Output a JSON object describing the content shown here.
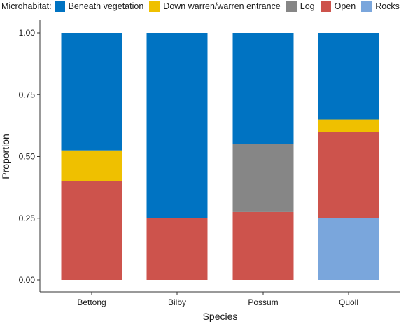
{
  "chart_data": {
    "type": "bar",
    "stacked": true,
    "categories": [
      "Bettong",
      "Bilby",
      "Possum",
      "Quoll"
    ],
    "series": [
      {
        "name": "Rocks",
        "color": "#7aa6dc",
        "values": [
          0,
          0,
          0,
          0.25
        ]
      },
      {
        "name": "Open",
        "color": "#cd534c",
        "values": [
          0.4,
          0.25,
          0.275,
          0.35
        ]
      },
      {
        "name": "Log",
        "color": "#868686",
        "values": [
          0,
          0,
          0.275,
          0
        ]
      },
      {
        "name": "Down warren/warren entrance",
        "color": "#efc000",
        "values": [
          0.125,
          0,
          0,
          0.05
        ]
      },
      {
        "name": "Beneath vegetation",
        "color": "#0073c2",
        "values": [
          0.475,
          0.75,
          0.45,
          0.35
        ]
      }
    ],
    "legend_title": "Microhabitat:",
    "legend_order": [
      "Beneath vegetation",
      "Down warren/warren entrance",
      "Log",
      "Open",
      "Rocks"
    ],
    "legend_position": "top",
    "xlabel": "Species",
    "ylabel": "Proportion",
    "ylim": [
      0,
      1
    ],
    "yticks": [
      "0.00",
      "0.25",
      "0.50",
      "0.75",
      "1.00"
    ],
    "grid": false
  }
}
